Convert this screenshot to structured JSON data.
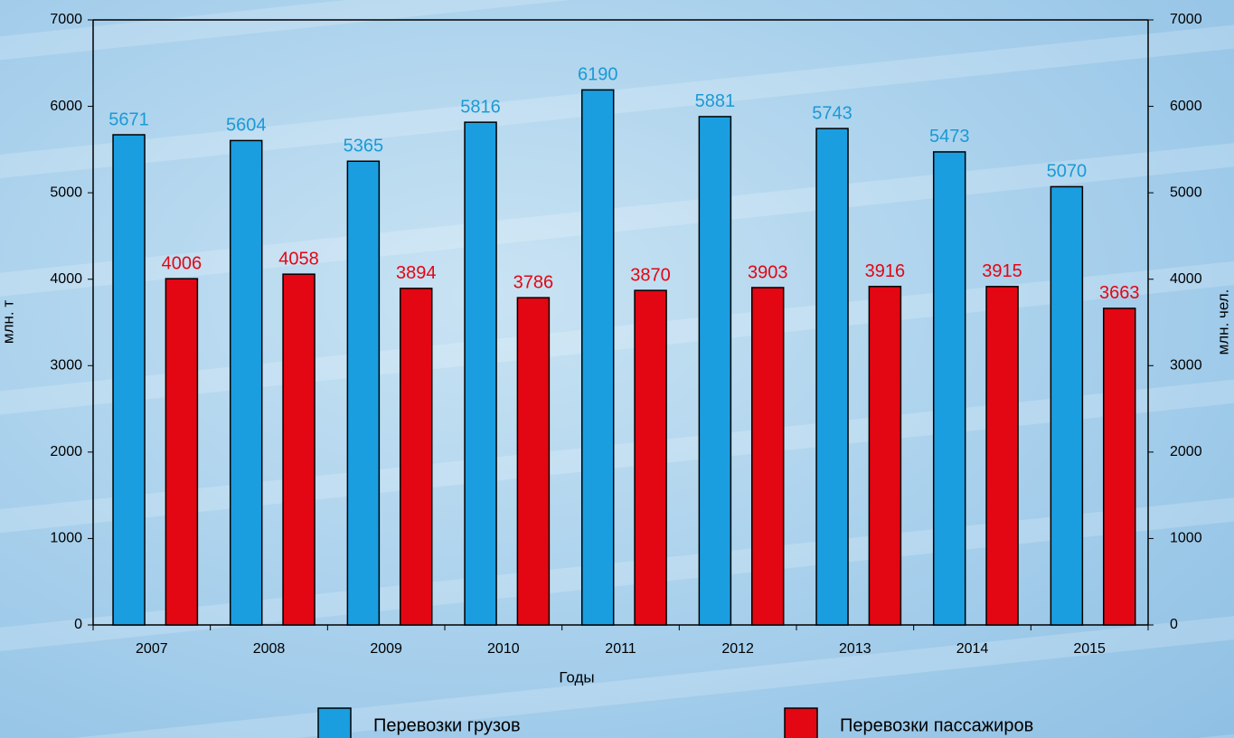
{
  "chart_data": {
    "type": "bar",
    "x_label": "Годы",
    "y_label": "млн. т",
    "y2_label": "млн. чел.",
    "categories": [
      "2007",
      "2008",
      "2009",
      "2010",
      "2011",
      "2012",
      "2013",
      "2014",
      "2015"
    ],
    "series": [
      {
        "name": "Перевозки грузов",
        "color": "#1a9ee0",
        "label_color": "#1a9ad6",
        "values": [
          5671,
          5604,
          5365,
          5816,
          6190,
          5881,
          5743,
          5473,
          5070
        ]
      },
      {
        "name": "Перевозки пассажиров",
        "color": "#e30613",
        "label_color": "#e30613",
        "axis": "y2",
        "values": [
          4006,
          4058,
          3894,
          3786,
          3870,
          3903,
          3916,
          3915,
          3663
        ]
      }
    ],
    "ylim": [
      0,
      7000
    ],
    "yticks": [
      0,
      1000,
      2000,
      3000,
      4000,
      5000,
      6000,
      7000
    ],
    "y2lim": [
      0,
      7000
    ],
    "y2ticks": [
      0,
      1000,
      2000,
      3000,
      4000,
      5000,
      6000,
      7000
    ],
    "grid": false
  }
}
